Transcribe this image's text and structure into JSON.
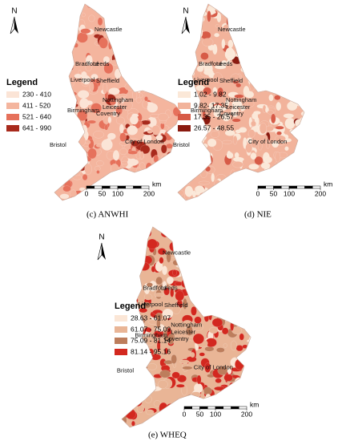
{
  "panels": [
    {
      "caption": "(c) ANWHI",
      "north": "N",
      "legend": {
        "title": "Legend",
        "items": [
          {
            "label": "230 - 410",
            "color": "#fbe4d6"
          },
          {
            "label": "411 - 520",
            "color": "#f4b59e"
          },
          {
            "label": "521 - 640",
            "color": "#e6715b"
          },
          {
            "label": "641 - 990",
            "color": "#a82a1c"
          }
        ]
      },
      "cities": [
        "Newcastle",
        "Bradford",
        "Leeds",
        "Liverpool",
        "Sheffield",
        "Nottingham",
        "Leicester",
        "Birmingham",
        "Coventry",
        "Bristol",
        "City of London"
      ],
      "scale": {
        "ticks": [
          0,
          50,
          100,
          200
        ],
        "unit": "km"
      }
    },
    {
      "caption": "(d) NIE",
      "north": "N",
      "legend": {
        "title": "Legend",
        "items": [
          {
            "label": "1.02 - 9.82",
            "color": "#fbe8d8"
          },
          {
            "label": "9.82- 17.35",
            "color": "#f2b39b"
          },
          {
            "label": "17.35 - 26.57",
            "color": "#d75b47"
          },
          {
            "label": "26.57 - 48.55",
            "color": "#8a1a0f"
          }
        ]
      },
      "cities": [
        "Newcastle",
        "Bradford",
        "Leeds",
        "Liverpool",
        "Sheffield",
        "Nottingham",
        "Leicester",
        "Birmingham",
        "Coventry",
        "Bristol",
        "City of London"
      ],
      "scale": {
        "ticks": [
          0,
          50,
          100,
          200
        ],
        "unit": "km"
      }
    },
    {
      "caption": "(e) WHEQ",
      "north": "N",
      "legend": {
        "title": "Legend",
        "items": [
          {
            "label": "28.63 - 61.07",
            "color": "#fbe6d6"
          },
          {
            "label": "61.07 - 75.09",
            "color": "#e9b596"
          },
          {
            "label": "75.09 - 81.14",
            "color": "#bd7d5c"
          },
          {
            "label": "81.14 - 95.16",
            "color": "#d3281f"
          }
        ]
      },
      "cities": [
        "Newcastle",
        "Bradford",
        "Leeds",
        "Liverpool",
        "Sheffield",
        "Nottingham",
        "Leicester",
        "Birmingham",
        "Coventry",
        "Bristol",
        "City of London"
      ],
      "scale": {
        "ticks": [
          0,
          50,
          100,
          200
        ],
        "unit": "km"
      }
    }
  ]
}
